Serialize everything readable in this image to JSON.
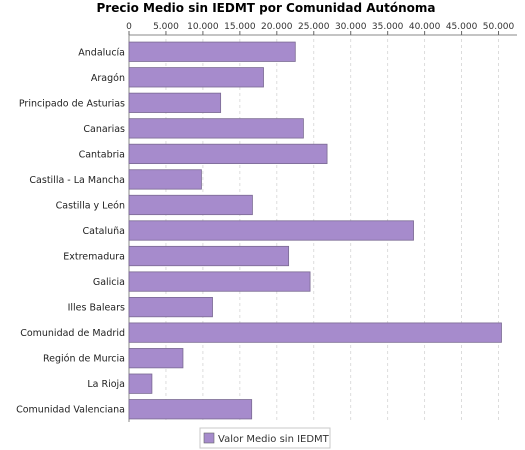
{
  "chart_data": {
    "type": "bar",
    "orientation": "horizontal",
    "title": "Precio Medio sin IEDMT por Comunidad Autónoma",
    "categories": [
      "Andalucía",
      "Aragón",
      "Principado de Asturias",
      "Canarias",
      "Cantabria",
      "Castilla - La Mancha",
      "Castilla y León",
      "Cataluña",
      "Extremadura",
      "Galicia",
      "Illes Balears",
      "Comunidad de Madrid",
      "Región de Murcia",
      "La Rioja",
      "Comunidad Valenciana"
    ],
    "series": [
      {
        "name": "Valor Medio sin IEDMT",
        "color": "#a68bcc",
        "values": [
          22500,
          18200,
          12400,
          23600,
          26800,
          9800,
          16700,
          38500,
          21600,
          24500,
          11300,
          50400,
          7300,
          3100,
          16600
        ]
      }
    ],
    "xlim": [
      0,
      52500
    ],
    "x_ticks": [
      "0",
      "5.000",
      "10.000",
      "15.000",
      "20.000",
      "25.000",
      "30.000",
      "35.000",
      "40.000",
      "45.000",
      "50.000"
    ],
    "x_tick_values": [
      0,
      5000,
      10000,
      15000,
      20000,
      25000,
      30000,
      35000,
      40000,
      45000,
      50000
    ],
    "x_axis_position": "top",
    "grid": true,
    "legend_position": "bottom-center"
  }
}
